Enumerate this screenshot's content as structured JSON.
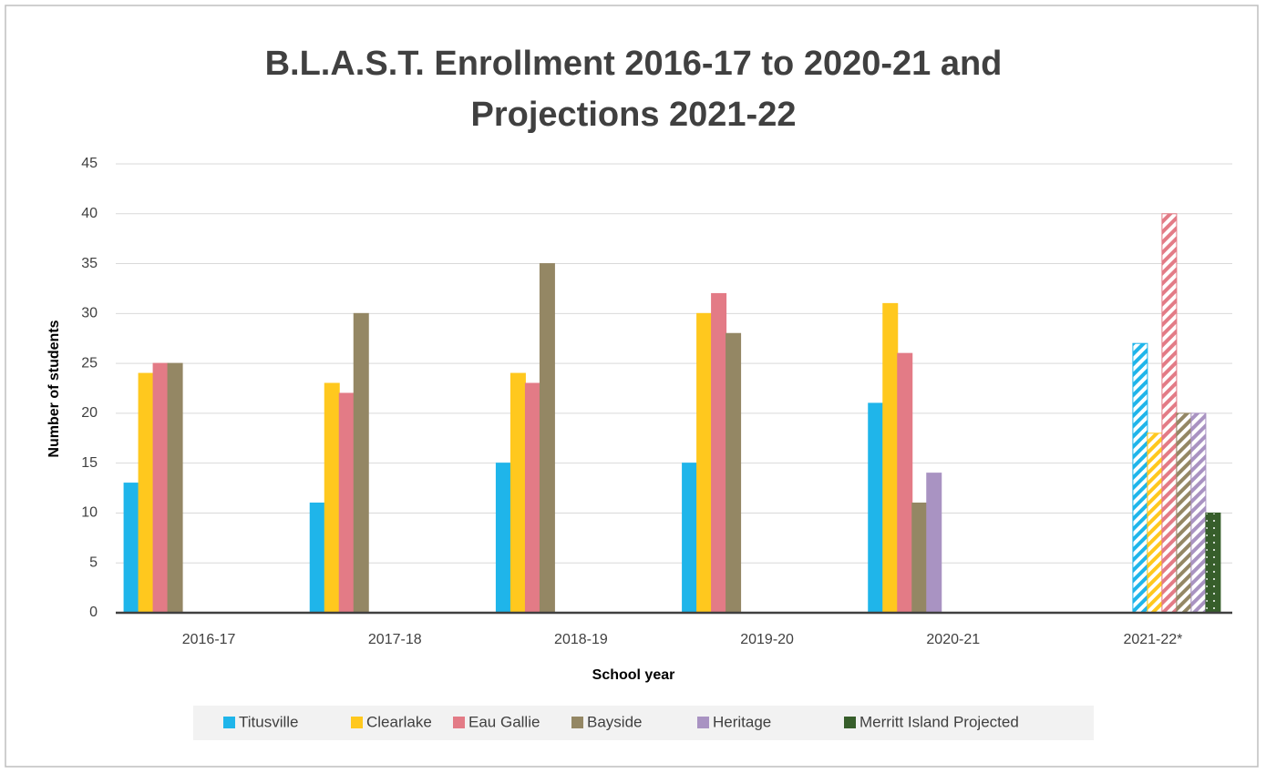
{
  "chart_data": {
    "type": "bar",
    "title": [
      "B.L.A.S.T. Enrollment 2016-17 to 2020-21 and",
      "Projections  2021-22"
    ],
    "x_label": "School year",
    "y_label": "Number of students",
    "categories": [
      "2016-17",
      "2017-18",
      "2018-19",
      "2019-20",
      "2020-21",
      "2021-22*"
    ],
    "series": [
      {
        "name": "Titusville",
        "color": "#1fb5ea",
        "values": [
          13,
          11,
          15,
          15,
          21,
          27
        ]
      },
      {
        "name": "Clearlake",
        "color": "#ffc81e",
        "values": [
          24,
          23,
          24,
          30,
          31,
          18
        ]
      },
      {
        "name": "Eau Gallie",
        "color": "#e37b86",
        "values": [
          25,
          22,
          23,
          32,
          26,
          40
        ]
      },
      {
        "name": "Bayside",
        "color": "#948764",
        "values": [
          25,
          30,
          35,
          28,
          11,
          20
        ]
      },
      {
        "name": "Heritage",
        "color": "#a993c2",
        "values": [
          null,
          null,
          null,
          null,
          14,
          20
        ]
      },
      {
        "name": "Merritt Island Projected",
        "color": "#375e2b",
        "values": [
          null,
          null,
          null,
          null,
          null,
          10
        ]
      }
    ],
    "ylim": [
      0,
      45
    ],
    "yticks": [
      0,
      5,
      10,
      15,
      20,
      25,
      30,
      35,
      40,
      45
    ],
    "grid": true,
    "legend": "bottom"
  }
}
